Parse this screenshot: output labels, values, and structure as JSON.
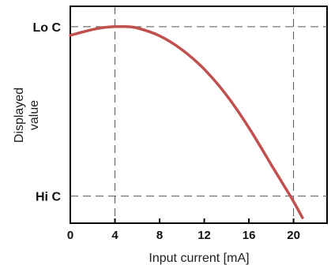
{
  "chart_data": {
    "type": "line",
    "xlabel": "Input current [mA]",
    "ylabel_lines": [
      "Displayed",
      "value"
    ],
    "xlim": [
      0,
      23
    ],
    "x_ticks": [
      0,
      4,
      8,
      12,
      16,
      20
    ],
    "x_tick_labels": [
      "0",
      "4",
      "8",
      "12",
      "16",
      "20"
    ],
    "ylim": [
      0,
      1
    ],
    "y_category_labels": [
      {
        "label": "Lo C",
        "y": 0.906
      },
      {
        "label": "Hi C",
        "y": 0.125
      }
    ],
    "reference_lines": {
      "horizontal": [
        0.906,
        0.125
      ],
      "vertical": [
        4,
        20
      ]
    },
    "series": [
      {
        "color": "#c0504d",
        "x": [
          0,
          1,
          2,
          3,
          4,
          5,
          6,
          8,
          10,
          12,
          14,
          16,
          18,
          19,
          20,
          20.8
        ],
        "y": [
          0.866,
          0.88,
          0.893,
          0.902,
          0.906,
          0.906,
          0.9,
          0.864,
          0.8,
          0.71,
          0.59,
          0.44,
          0.27,
          0.185,
          0.1,
          0.025
        ]
      }
    ],
    "grid": false,
    "legend": "none"
  }
}
